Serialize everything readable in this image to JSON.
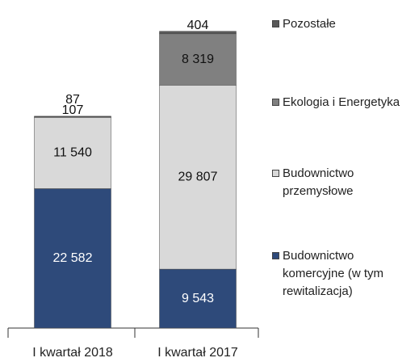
{
  "chart_data": {
    "type": "stacked-bar",
    "categories": [
      "I kwartał 2018",
      "I kwartał 2017"
    ],
    "series": [
      {
        "name": "Budownictwo komercyjne (w tym rewitalizacja)",
        "color": "#2e4a7a",
        "values": [
          22582,
          9543
        ],
        "value_labels": [
          "22 582",
          "9 543"
        ]
      },
      {
        "name": "Budownictwo przemysłowe",
        "color": "#d9d9d9",
        "values": [
          11540,
          29807
        ],
        "value_labels": [
          "11 540",
          "29 807"
        ]
      },
      {
        "name": "Ekologia i Energetyka",
        "color": "#808080",
        "values": [
          107,
          8319
        ],
        "value_labels": [
          "107",
          "8 319"
        ]
      },
      {
        "name": "Pozostałe",
        "color": "#595959",
        "values": [
          87,
          404
        ],
        "value_labels": [
          "87",
          "404"
        ]
      }
    ],
    "ylim": [
      0,
      50000
    ]
  }
}
